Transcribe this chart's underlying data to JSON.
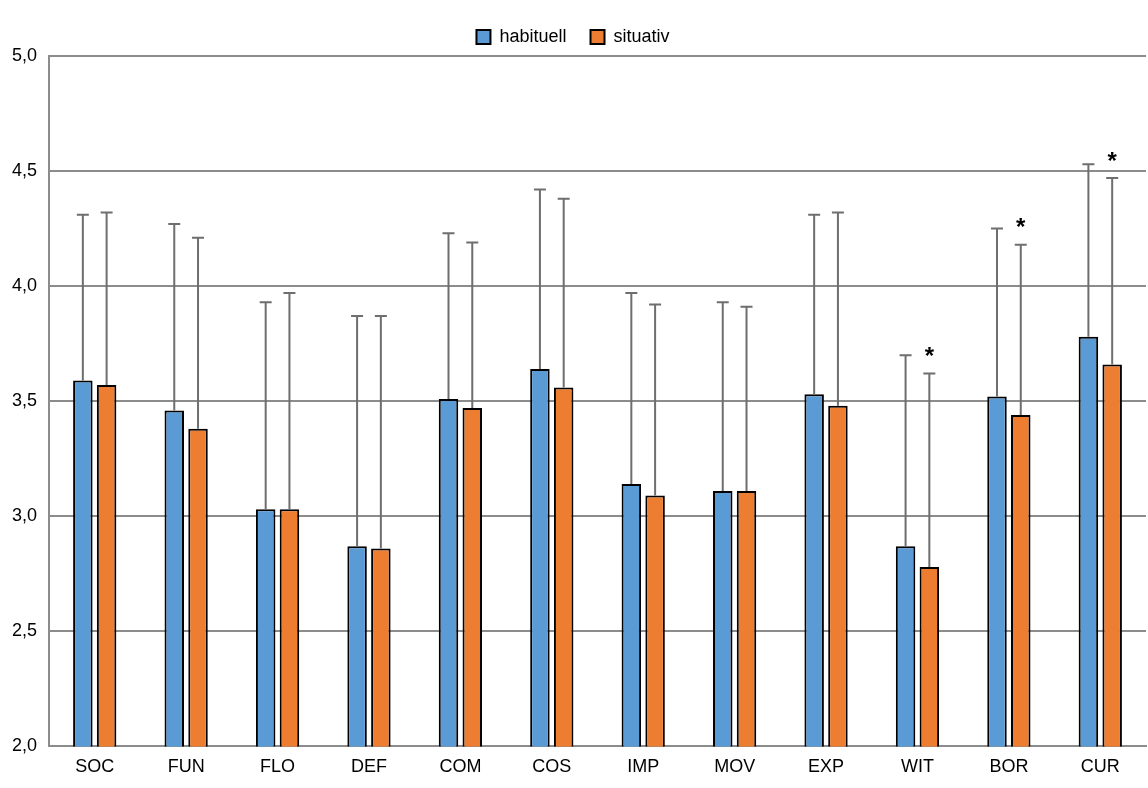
{
  "chart_data": {
    "type": "bar",
    "categories": [
      "SOC",
      "FUN",
      "FLO",
      "DEF",
      "COM",
      "COS",
      "IMP",
      "MOV",
      "EXP",
      "WIT",
      "BOR",
      "CUR"
    ],
    "series": [
      {
        "name": "habituell",
        "color": "#5b9bd5",
        "values": [
          3.59,
          3.46,
          3.03,
          2.87,
          3.51,
          3.64,
          3.14,
          3.11,
          3.53,
          2.87,
          3.52,
          3.78
        ],
        "errors": [
          [
            3.59,
            4.31
          ],
          [
            3.46,
            4.27
          ],
          [
            3.03,
            3.93
          ],
          [
            2.87,
            3.87
          ],
          [
            3.51,
            4.23
          ],
          [
            3.64,
            4.42
          ],
          [
            3.14,
            3.97
          ],
          [
            3.11,
            3.93
          ],
          [
            3.53,
            4.31
          ],
          [
            2.87,
            3.7
          ],
          [
            3.52,
            4.25
          ],
          [
            3.78,
            4.53
          ]
        ]
      },
      {
        "name": "situativ",
        "color": "#ed7d31",
        "values": [
          3.57,
          3.38,
          3.03,
          2.86,
          3.47,
          3.56,
          3.09,
          3.11,
          3.48,
          2.78,
          3.44,
          3.66
        ],
        "errors": [
          [
            3.57,
            4.32
          ],
          [
            3.38,
            4.21
          ],
          [
            3.03,
            3.97
          ],
          [
            2.86,
            3.87
          ],
          [
            3.47,
            4.19
          ],
          [
            3.56,
            4.38
          ],
          [
            3.09,
            3.92
          ],
          [
            3.11,
            3.91
          ],
          [
            3.48,
            4.32
          ],
          [
            2.78,
            3.62
          ],
          [
            3.44,
            4.18
          ],
          [
            3.66,
            4.47
          ]
        ]
      }
    ],
    "ylim": [
      2,
      5
    ],
    "yticks": [
      {
        "value": 2,
        "label": "2,0"
      },
      {
        "value": 2.5,
        "label": "2,5"
      },
      {
        "value": 3,
        "label": "3,0"
      },
      {
        "value": 3.5,
        "label": "3,5"
      },
      {
        "value": 4,
        "label": "4,0"
      },
      {
        "value": 4.5,
        "label": "4,5"
      },
      {
        "value": 5,
        "label": "5,0"
      }
    ],
    "grid": "y",
    "legend": "top",
    "annotations": [
      "*",
      "*",
      "*"
    ]
  }
}
